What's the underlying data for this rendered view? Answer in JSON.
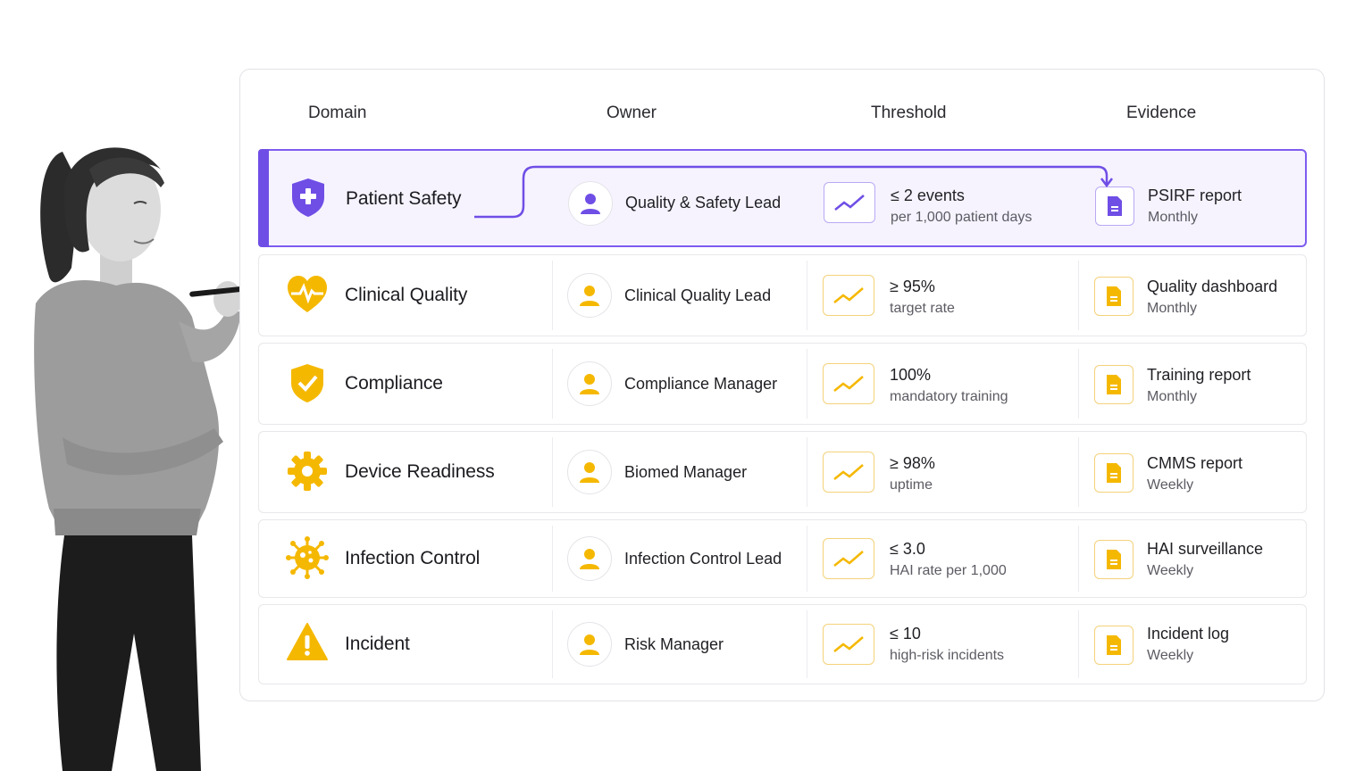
{
  "headers": {
    "domain": "Domain",
    "owner": "Owner",
    "threshold": "Threshold",
    "evidence": "Evidence"
  },
  "colors": {
    "accent_purple": "#6f4ee6",
    "accent_yellow": "#f5b800",
    "active_row_bg": "#f6f3ff"
  },
  "rows": [
    {
      "domain": "Patient Safety",
      "domain_icon": "shield-plus-icon",
      "owner": "Quality & Safety Lead",
      "threshold_main": "≤ 2 events",
      "threshold_sub": "per 1,000 patient days",
      "evidence_main": "PSIRF report",
      "evidence_sub": "Monthly",
      "selected": true
    },
    {
      "domain": "Clinical Quality",
      "domain_icon": "heart-pulse-icon",
      "owner": "Clinical Quality Lead",
      "threshold_main": "≥ 95%",
      "threshold_sub": "target rate",
      "evidence_main": "Quality dashboard",
      "evidence_sub": "Monthly",
      "selected": false
    },
    {
      "domain": "Compliance",
      "domain_icon": "shield-check-icon",
      "owner": "Compliance Manager",
      "threshold_main": "100%",
      "threshold_sub": "mandatory training",
      "evidence_main": "Training report",
      "evidence_sub": "Monthly",
      "selected": false
    },
    {
      "domain": "Device Readiness",
      "domain_icon": "gear-icon",
      "owner": "Biomed Manager",
      "threshold_main": "≥ 98%",
      "threshold_sub": "uptime",
      "evidence_main": "CMMS report",
      "evidence_sub": "Weekly",
      "selected": false
    },
    {
      "domain": "Infection Control",
      "domain_icon": "virus-icon",
      "owner": "Infection Control Lead",
      "threshold_main": "≤ 3.0",
      "threshold_sub": "HAI rate per 1,000",
      "evidence_main": "HAI surveillance",
      "evidence_sub": "Weekly",
      "selected": false
    },
    {
      "domain": "Incident",
      "domain_icon": "warning-triangle-icon",
      "owner": "Risk Manager",
      "threshold_main": "≤ 10",
      "threshold_sub": "high-risk incidents",
      "evidence_main": "Incident log",
      "evidence_sub": "Weekly",
      "selected": false
    }
  ]
}
